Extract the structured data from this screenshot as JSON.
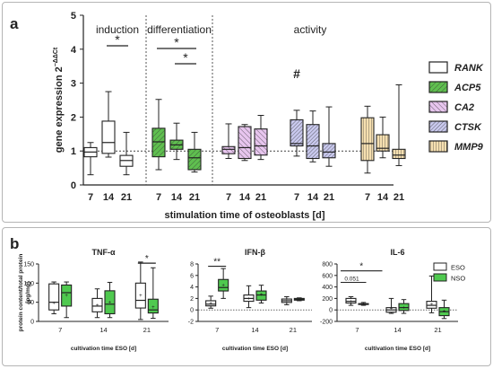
{
  "panel_a": {
    "letter": "a",
    "ylabel": "gene expression 2",
    "ylabel_sup": "−ΔΔCt",
    "xlabel": "stimulation time of osteoblasts [d]",
    "sections": [
      "induction",
      "differentiation",
      "activity"
    ],
    "hash_mark": "#"
  },
  "panel_b": {
    "letter": "b",
    "shared_ylabel_line1": "protein content/total protein",
    "shared_ylabel_line2": "[pg/mg]",
    "annot_p": "0.051"
  },
  "colors": {
    "RANK": "#ffffff",
    "ACP5": "#5fbf4f",
    "CA2": "#e7c5ee",
    "CTSK": "#c9c9ee",
    "MMP9": "#f5dfb0",
    "ESO": "#ffffff",
    "NSO": "#4fc94f",
    "stroke": "#222222"
  },
  "chart_data": [
    {
      "type": "box",
      "panel": "a",
      "title": "",
      "xlabel": "stimulation time of osteoblasts [d]",
      "ylabel": "gene expression 2−ΔΔCt",
      "ylim": [
        0,
        5
      ],
      "yticks": [
        0,
        1,
        2,
        3,
        4,
        5
      ],
      "reference_line": 1,
      "legend_position": "right",
      "legend": [
        "RANK",
        "ACP5",
        "CA2",
        "CTSK",
        "MMP9"
      ],
      "series": [
        {
          "name": "RANK",
          "group": "induction",
          "x": [
            "7",
            "14",
            "21"
          ],
          "stats": [
            {
              "min": 0.3,
              "q1": 0.83,
              "median": 0.97,
              "q3": 1.1,
              "max": 1.25
            },
            {
              "min": 0.82,
              "q1": 0.93,
              "median": 1.25,
              "q3": 1.88,
              "max": 2.75
            },
            {
              "min": 0.3,
              "q1": 0.55,
              "median": 0.72,
              "q3": 0.87,
              "max": 1.55
            }
          ],
          "significance": [
            {
              "from": "14",
              "to": "21",
              "label": "*"
            }
          ]
        },
        {
          "name": "ACP5",
          "group": "differentiation",
          "x": [
            "7",
            "14",
            "21"
          ],
          "stats": [
            {
              "min": 0.45,
              "q1": 0.83,
              "median": 1.27,
              "q3": 1.67,
              "max": 2.52
            },
            {
              "min": 0.75,
              "q1": 1.05,
              "median": 1.18,
              "q3": 1.32,
              "max": 1.82
            },
            {
              "min": 0.38,
              "q1": 0.45,
              "median": 0.8,
              "q3": 1.05,
              "max": 1.55
            }
          ],
          "significance": [
            {
              "from": "7",
              "to": "21",
              "label": "*"
            },
            {
              "from": "14",
              "to": "21",
              "label": "*"
            }
          ]
        },
        {
          "name": "CA2",
          "group": "activity",
          "x": [
            "7",
            "14",
            "21"
          ],
          "stats": [
            {
              "min": 0.78,
              "q1": 0.92,
              "median": 1.05,
              "q3": 1.13,
              "max": 1.8
            },
            {
              "min": 0.72,
              "q1": 0.78,
              "median": 1.1,
              "q3": 1.72,
              "max": 1.78
            },
            {
              "min": 0.75,
              "q1": 0.88,
              "median": 1.15,
              "q3": 1.65,
              "max": 2.05
            }
          ]
        },
        {
          "name": "CTSK",
          "group": "activity",
          "x": [
            "7",
            "14",
            "21"
          ],
          "stats": [
            {
              "min": 0.85,
              "q1": 1.15,
              "median": 1.22,
              "q3": 1.92,
              "max": 2.2
            },
            {
              "min": 0.68,
              "q1": 0.78,
              "median": 1.15,
              "q3": 1.78,
              "max": 2.18
            },
            {
              "min": 0.55,
              "q1": 0.8,
              "median": 0.97,
              "q3": 1.22,
              "max": 2.3
            }
          ],
          "annotations": [
            {
              "x": "7",
              "label": "#"
            }
          ]
        },
        {
          "name": "MMP9",
          "group": "activity",
          "x": [
            "7",
            "14",
            "21"
          ],
          "stats": [
            {
              "min": 0.35,
              "q1": 0.72,
              "median": 1.22,
              "q3": 1.98,
              "max": 2.32
            },
            {
              "min": 0.8,
              "q1": 1.0,
              "median": 1.08,
              "q3": 1.48,
              "max": 2.0
            },
            {
              "min": 0.57,
              "q1": 0.78,
              "median": 0.88,
              "q3": 1.05,
              "max": 2.95
            }
          ]
        }
      ]
    },
    {
      "type": "box",
      "panel": "b",
      "title": "TNF-α",
      "xlabel": "cultivation time ESO [d]",
      "ylabel": "protein content/total protein [pg/mg]",
      "ylim": [
        0,
        150
      ],
      "yticks": [
        0,
        50,
        100,
        150
      ],
      "reference_line": 0,
      "x": [
        "7",
        "14",
        "21"
      ],
      "series": [
        {
          "name": "ESO",
          "stats": [
            {
              "min": 20,
              "q1": 30,
              "median": 50,
              "q3": 98,
              "max": 103,
              "mean": 48
            },
            {
              "min": 10,
              "q1": 25,
              "median": 40,
              "q3": 60,
              "max": 85,
              "mean": 42
            },
            {
              "min": 5,
              "q1": 35,
              "median": 55,
              "q3": 100,
              "max": 155,
              "mean": 68
            }
          ]
        },
        {
          "name": "NSO",
          "stats": [
            {
              "min": 10,
              "q1": 40,
              "median": 75,
              "q3": 95,
              "max": 103,
              "mean": 68
            },
            {
              "min": 10,
              "q1": 20,
              "median": 45,
              "q3": 80,
              "max": 102,
              "mean": 50
            },
            {
              "min": 8,
              "q1": 22,
              "median": 30,
              "q3": 58,
              "max": 140,
              "mean": 38
            }
          ]
        }
      ],
      "significance": [
        {
          "x": "21",
          "label": "*"
        }
      ]
    },
    {
      "type": "box",
      "panel": "b",
      "title": "IFN-β",
      "xlabel": "cultivation time ESO [d]",
      "ylim": [
        -2,
        8
      ],
      "yticks": [
        -2,
        0,
        2,
        4,
        6,
        8
      ],
      "reference_line": 0,
      "x": [
        "7",
        "14",
        "21"
      ],
      "series": [
        {
          "name": "ESO",
          "stats": [
            {
              "min": 0.3,
              "q1": 0.7,
              "median": 1.0,
              "q3": 1.6,
              "max": 2.4,
              "mean": 1.1
            },
            {
              "min": 0.4,
              "q1": 1.5,
              "median": 2.0,
              "q3": 2.6,
              "max": 4.2,
              "mean": 2.0
            },
            {
              "min": 0.9,
              "q1": 1.3,
              "median": 1.6,
              "q3": 1.9,
              "max": 2.3,
              "mean": 1.6
            }
          ]
        },
        {
          "name": "NSO",
          "stats": [
            {
              "min": 2.0,
              "q1": 3.3,
              "median": 3.9,
              "q3": 5.3,
              "max": 7.2,
              "mean": 4.3
            },
            {
              "min": 1.2,
              "q1": 1.7,
              "median": 2.6,
              "q3": 3.3,
              "max": 4.3,
              "mean": 2.7
            },
            {
              "min": 1.6,
              "q1": 1.7,
              "median": 1.85,
              "q3": 2.0,
              "max": 2.1,
              "mean": 1.85
            }
          ]
        }
      ],
      "significance": [
        {
          "x": "7",
          "label": "**"
        }
      ]
    },
    {
      "type": "box",
      "panel": "b",
      "title": "IL-6",
      "xlabel": "cultivation time ESO [d]",
      "ylim": [
        -200,
        800
      ],
      "yticks": [
        -200,
        0,
        200,
        400,
        600,
        800
      ],
      "reference_line": 0,
      "legend": [
        "ESO",
        "NSO"
      ],
      "legend_position": "top-right",
      "x": [
        "7",
        "14",
        "21"
      ],
      "series": [
        {
          "name": "ESO",
          "stats": [
            {
              "min": 80,
              "q1": 120,
              "median": 150,
              "q3": 200,
              "max": 230,
              "mean": 155
            },
            {
              "min": -60,
              "q1": -40,
              "median": 0,
              "q3": 40,
              "max": 200,
              "mean": 20
            },
            {
              "min": -50,
              "q1": 30,
              "median": 80,
              "q3": 150,
              "max": 590,
              "mean": 100
            }
          ]
        },
        {
          "name": "NSO",
          "stats": [
            {
              "min": 80,
              "q1": 95,
              "median": 100,
              "q3": 110,
              "max": 130,
              "mean": 100
            },
            {
              "min": -60,
              "q1": -10,
              "median": 40,
              "q3": 110,
              "max": 180,
              "mean": 45
            },
            {
              "min": -150,
              "q1": -100,
              "median": -30,
              "q3": 40,
              "max": 170,
              "mean": -20
            }
          ]
        }
      ],
      "significance": [
        {
          "x": "7",
          "label": "*"
        },
        {
          "x": "7",
          "label": "0.051"
        }
      ]
    }
  ]
}
